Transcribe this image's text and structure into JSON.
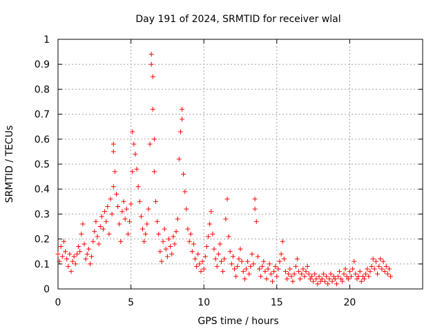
{
  "chart_data": {
    "type": "scatter",
    "title": "Day 191 of 2024, SRMTID for receiver wlal",
    "xlabel": "GPS time / hours",
    "ylabel": "SRMTID / TECUs",
    "xlim": [
      0,
      25
    ],
    "ylim": [
      0,
      1
    ],
    "grid": true,
    "marker": "+",
    "color": "#ff0000",
    "x_ticks": [
      {
        "value": 0,
        "label": "0"
      },
      {
        "value": 5,
        "label": "5"
      },
      {
        "value": 10,
        "label": "10"
      },
      {
        "value": 15,
        "label": "15"
      },
      {
        "value": 20,
        "label": "20"
      }
    ],
    "y_ticks": [
      {
        "value": 0,
        "label": "0"
      },
      {
        "value": 0.1,
        "label": "0.1"
      },
      {
        "value": 0.2,
        "label": "0.2"
      },
      {
        "value": 0.3,
        "label": "0.3"
      },
      {
        "value": 0.4,
        "label": "0.4"
      },
      {
        "value": 0.5,
        "label": "0.5"
      },
      {
        "value": 0.6,
        "label": "0.6"
      },
      {
        "value": 0.7,
        "label": "0.7"
      },
      {
        "value": 0.8,
        "label": "0.8"
      },
      {
        "value": 0.9,
        "label": "0.9"
      },
      {
        "value": 1,
        "label": "1"
      }
    ],
    "series": [
      {
        "name": "SRMTID",
        "points": [
          [
            0.0,
            0.14
          ],
          [
            0.1,
            0.11
          ],
          [
            0.2,
            0.17
          ],
          [
            0.3,
            0.13
          ],
          [
            0.4,
            0.19
          ],
          [
            0.5,
            0.15
          ],
          [
            0.6,
            0.12
          ],
          [
            0.7,
            0.09
          ],
          [
            0.8,
            0.14
          ],
          [
            0.9,
            0.07
          ],
          [
            1.0,
            0.11
          ],
          [
            1.1,
            0.13
          ],
          [
            1.2,
            0.1
          ],
          [
            1.3,
            0.14
          ],
          [
            1.4,
            0.17
          ],
          [
            1.5,
            0.15
          ],
          [
            1.6,
            0.22
          ],
          [
            1.7,
            0.26
          ],
          [
            1.8,
            0.18
          ],
          [
            1.9,
            0.12
          ],
          [
            2.0,
            0.14
          ],
          [
            2.1,
            0.16
          ],
          [
            2.2,
            0.1
          ],
          [
            2.3,
            0.13
          ],
          [
            2.4,
            0.19
          ],
          [
            2.5,
            0.23
          ],
          [
            2.6,
            0.27
          ],
          [
            2.7,
            0.21
          ],
          [
            2.8,
            0.18
          ],
          [
            2.9,
            0.25
          ],
          [
            3.0,
            0.29
          ],
          [
            3.1,
            0.24
          ],
          [
            3.2,
            0.31
          ],
          [
            3.3,
            0.27
          ],
          [
            3.4,
            0.33
          ],
          [
            3.5,
            0.22
          ],
          [
            3.6,
            0.36
          ],
          [
            3.7,
            0.3
          ],
          [
            3.8,
            0.41
          ],
          [
            3.8,
            0.55
          ],
          [
            3.8,
            0.58
          ],
          [
            3.9,
            0.47
          ],
          [
            4.0,
            0.38
          ],
          [
            4.1,
            0.33
          ],
          [
            4.2,
            0.26
          ],
          [
            4.3,
            0.19
          ],
          [
            4.4,
            0.31
          ],
          [
            4.5,
            0.35
          ],
          [
            4.6,
            0.28
          ],
          [
            4.7,
            0.32
          ],
          [
            4.8,
            0.22
          ],
          [
            4.9,
            0.27
          ],
          [
            5.0,
            0.34
          ],
          [
            5.1,
            0.47
          ],
          [
            5.1,
            0.63
          ],
          [
            5.2,
            0.58
          ],
          [
            5.3,
            0.54
          ],
          [
            5.4,
            0.48
          ],
          [
            5.5,
            0.41
          ],
          [
            5.6,
            0.35
          ],
          [
            5.7,
            0.29
          ],
          [
            5.8,
            0.24
          ],
          [
            5.9,
            0.19
          ],
          [
            6.0,
            0.22
          ],
          [
            6.1,
            0.26
          ],
          [
            6.2,
            0.32
          ],
          [
            6.3,
            0.58
          ],
          [
            6.4,
            0.94
          ],
          [
            6.4,
            0.9
          ],
          [
            6.5,
            0.85
          ],
          [
            6.5,
            0.72
          ],
          [
            6.6,
            0.6
          ],
          [
            6.6,
            0.47
          ],
          [
            6.7,
            0.35
          ],
          [
            6.8,
            0.27
          ],
          [
            6.9,
            0.22
          ],
          [
            7.0,
            0.15
          ],
          [
            7.1,
            0.11
          ],
          [
            7.2,
            0.19
          ],
          [
            7.3,
            0.24
          ],
          [
            7.4,
            0.16
          ],
          [
            7.5,
            0.13
          ],
          [
            7.6,
            0.2
          ],
          [
            7.7,
            0.17
          ],
          [
            7.8,
            0.14
          ],
          [
            7.9,
            0.21
          ],
          [
            8.0,
            0.18
          ],
          [
            8.1,
            0.23
          ],
          [
            8.2,
            0.28
          ],
          [
            8.3,
            0.52
          ],
          [
            8.4,
            0.63
          ],
          [
            8.5,
            0.72
          ],
          [
            8.5,
            0.68
          ],
          [
            8.6,
            0.46
          ],
          [
            8.7,
            0.39
          ],
          [
            8.8,
            0.32
          ],
          [
            8.9,
            0.24
          ],
          [
            9.0,
            0.19
          ],
          [
            9.1,
            0.22
          ],
          [
            9.2,
            0.15
          ],
          [
            9.3,
            0.18
          ],
          [
            9.4,
            0.12
          ],
          [
            9.5,
            0.09
          ],
          [
            9.6,
            0.14
          ],
          [
            9.7,
            0.1
          ],
          [
            9.8,
            0.07
          ],
          [
            9.9,
            0.11
          ],
          [
            10.0,
            0.08
          ],
          [
            10.1,
            0.13
          ],
          [
            10.2,
            0.17
          ],
          [
            10.3,
            0.21
          ],
          [
            10.4,
            0.26
          ],
          [
            10.5,
            0.31
          ],
          [
            10.6,
            0.22
          ],
          [
            10.7,
            0.16
          ],
          [
            10.8,
            0.12
          ],
          [
            10.9,
            0.09
          ],
          [
            11.0,
            0.14
          ],
          [
            11.1,
            0.18
          ],
          [
            11.2,
            0.11
          ],
          [
            11.3,
            0.07
          ],
          [
            11.4,
            0.12
          ],
          [
            11.5,
            0.28
          ],
          [
            11.6,
            0.36
          ],
          [
            11.7,
            0.21
          ],
          [
            11.8,
            0.15
          ],
          [
            11.9,
            0.1
          ],
          [
            12.0,
            0.13
          ],
          [
            12.1,
            0.08
          ],
          [
            12.2,
            0.05
          ],
          [
            12.3,
            0.09
          ],
          [
            12.4,
            0.12
          ],
          [
            12.5,
            0.16
          ],
          [
            12.6,
            0.11
          ],
          [
            12.7,
            0.07
          ],
          [
            12.8,
            0.04
          ],
          [
            12.9,
            0.08
          ],
          [
            13.0,
            0.11
          ],
          [
            13.1,
            0.06
          ],
          [
            13.2,
            0.09
          ],
          [
            13.3,
            0.14
          ],
          [
            13.4,
            0.1
          ],
          [
            13.5,
            0.36
          ],
          [
            13.5,
            0.32
          ],
          [
            13.6,
            0.27
          ],
          [
            13.7,
            0.13
          ],
          [
            13.8,
            0.08
          ],
          [
            13.9,
            0.05
          ],
          [
            14.0,
            0.09
          ],
          [
            14.1,
            0.11
          ],
          [
            14.2,
            0.07
          ],
          [
            14.3,
            0.04
          ],
          [
            14.4,
            0.08
          ],
          [
            14.5,
            0.1
          ],
          [
            14.6,
            0.06
          ],
          [
            14.7,
            0.03
          ],
          [
            14.8,
            0.07
          ],
          [
            14.9,
            0.09
          ],
          [
            15.0,
            0.05
          ],
          [
            15.1,
            0.08
          ],
          [
            15.2,
            0.11
          ],
          [
            15.3,
            0.14
          ],
          [
            15.4,
            0.19
          ],
          [
            15.5,
            0.12
          ],
          [
            15.6,
            0.07
          ],
          [
            15.7,
            0.04
          ],
          [
            15.8,
            0.06
          ],
          [
            15.9,
            0.08
          ],
          [
            16.0,
            0.05
          ],
          [
            16.1,
            0.03
          ],
          [
            16.2,
            0.06
          ],
          [
            16.3,
            0.09
          ],
          [
            16.4,
            0.12
          ],
          [
            16.5,
            0.07
          ],
          [
            16.6,
            0.04
          ],
          [
            16.7,
            0.06
          ],
          [
            16.8,
            0.08
          ],
          [
            16.9,
            0.05
          ],
          [
            17.0,
            0.07
          ],
          [
            17.1,
            0.09
          ],
          [
            17.2,
            0.06
          ],
          [
            17.3,
            0.04
          ],
          [
            17.4,
            0.05
          ],
          [
            17.5,
            0.03
          ],
          [
            17.6,
            0.06
          ],
          [
            17.7,
            0.04
          ],
          [
            17.8,
            0.02
          ],
          [
            17.9,
            0.05
          ],
          [
            18.0,
            0.03
          ],
          [
            18.1,
            0.04
          ],
          [
            18.2,
            0.06
          ],
          [
            18.3,
            0.03
          ],
          [
            18.4,
            0.05
          ],
          [
            18.5,
            0.02
          ],
          [
            18.6,
            0.04
          ],
          [
            18.7,
            0.06
          ],
          [
            18.8,
            0.03
          ],
          [
            18.9,
            0.05
          ],
          [
            19.0,
            0.04
          ],
          [
            19.1,
            0.02
          ],
          [
            19.2,
            0.05
          ],
          [
            19.3,
            0.07
          ],
          [
            19.4,
            0.04
          ],
          [
            19.5,
            0.03
          ],
          [
            19.6,
            0.06
          ],
          [
            19.7,
            0.08
          ],
          [
            19.8,
            0.05
          ],
          [
            19.9,
            0.04
          ],
          [
            20.0,
            0.07
          ],
          [
            20.1,
            0.05
          ],
          [
            20.2,
            0.08
          ],
          [
            20.3,
            0.11
          ],
          [
            20.4,
            0.06
          ],
          [
            20.5,
            0.04
          ],
          [
            20.6,
            0.05
          ],
          [
            20.7,
            0.07
          ],
          [
            20.8,
            0.03
          ],
          [
            20.9,
            0.05
          ],
          [
            21.0,
            0.04
          ],
          [
            21.1,
            0.06
          ],
          [
            21.2,
            0.08
          ],
          [
            21.3,
            0.05
          ],
          [
            21.4,
            0.07
          ],
          [
            21.5,
            0.09
          ],
          [
            21.6,
            0.12
          ],
          [
            21.7,
            0.08
          ],
          [
            21.8,
            0.11
          ],
          [
            21.9,
            0.06
          ],
          [
            22.0,
            0.09
          ],
          [
            22.1,
            0.12
          ],
          [
            22.2,
            0.08
          ],
          [
            22.3,
            0.11
          ],
          [
            22.4,
            0.07
          ],
          [
            22.5,
            0.09
          ],
          [
            22.6,
            0.06
          ],
          [
            22.7,
            0.08
          ],
          [
            22.8,
            0.05
          ]
        ]
      }
    ]
  }
}
